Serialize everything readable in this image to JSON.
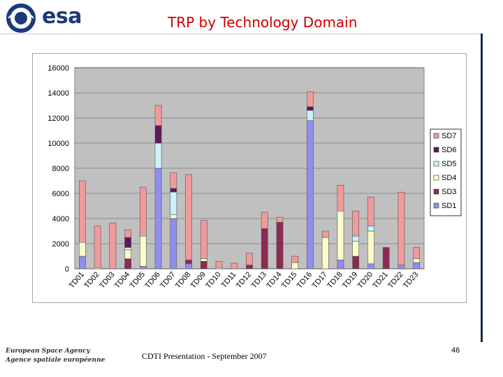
{
  "header": {
    "logo_text": "esa",
    "title": "TRP by Technology Domain"
  },
  "footer": {
    "agency_line1": "European Space Agency",
    "agency_line2": "Agence spatiale européenne",
    "presentation": "CDTI Presentation - September  2007",
    "page_number": "46"
  },
  "colors": {
    "SD1": "#8f8fef",
    "SD3": "#8b2a52",
    "SD4": "#fdfdc8",
    "SD5": "#ccf2fb",
    "SD6": "#5a1a5c",
    "SD7": "#f19a9a",
    "plot_bg": "#c0c0c0",
    "brand": "#1b3a78",
    "title": "#cc0000"
  },
  "chart_data": {
    "type": "bar",
    "stacked": true,
    "title": "TRP by Technology Domain",
    "xlabel": "",
    "ylabel": "",
    "ylim": [
      0,
      16000
    ],
    "yticks": [
      0,
      2000,
      4000,
      6000,
      8000,
      10000,
      12000,
      14000,
      16000
    ],
    "ytick_labels": [
      "0",
      "2000",
      "4000",
      "6000",
      "8000",
      "10000",
      "12000",
      "14000",
      "16000"
    ],
    "grid": true,
    "legend_position": "right",
    "categories": [
      "TD01",
      "TD02",
      "TD03",
      "TD04",
      "TD05",
      "TD06",
      "TD07",
      "TD08",
      "TD09",
      "TD10",
      "TD11",
      "TD12",
      "TD13",
      "TD14",
      "TD15",
      "TD16",
      "TD17",
      "TD18",
      "TD19",
      "TD20",
      "TD21",
      "TD22",
      "TD23"
    ],
    "series": [
      {
        "name": "SD1",
        "values": [
          1000,
          0,
          0,
          0,
          200,
          8000,
          4000,
          400,
          0,
          0,
          0,
          0,
          0,
          0,
          0,
          11800,
          0,
          700,
          0,
          400,
          0,
          300,
          500
        ]
      },
      {
        "name": "SD3",
        "values": [
          0,
          0,
          0,
          800,
          0,
          0,
          0,
          300,
          600,
          0,
          0,
          300,
          3200,
          3700,
          0,
          0,
          0,
          0,
          1000,
          0,
          1700,
          0,
          0
        ]
      },
      {
        "name": "SD4",
        "values": [
          1100,
          100,
          0,
          700,
          2400,
          0,
          300,
          0,
          200,
          100,
          0,
          0,
          0,
          0,
          500,
          0,
          2500,
          3900,
          1200,
          2600,
          0,
          0,
          300
        ]
      },
      {
        "name": "SD5",
        "values": [
          0,
          0,
          0,
          200,
          0,
          2000,
          1800,
          0,
          0,
          0,
          0,
          0,
          0,
          0,
          0,
          800,
          0,
          0,
          400,
          400,
          0,
          0,
          0
        ]
      },
      {
        "name": "SD6",
        "values": [
          0,
          0,
          0,
          800,
          0,
          1400,
          300,
          0,
          0,
          0,
          0,
          0,
          0,
          0,
          0,
          300,
          0,
          0,
          0,
          0,
          0,
          0,
          0
        ]
      },
      {
        "name": "SD7",
        "values": [
          4900,
          3300,
          3650,
          600,
          3900,
          1600,
          1250,
          6800,
          3050,
          500,
          450,
          950,
          1300,
          400,
          500,
          1200,
          500,
          2050,
          2000,
          2300,
          0,
          5800,
          900
        ]
      }
    ],
    "legend_order": [
      "SD7",
      "SD6",
      "SD5",
      "SD4",
      "SD3",
      "SD1"
    ]
  }
}
